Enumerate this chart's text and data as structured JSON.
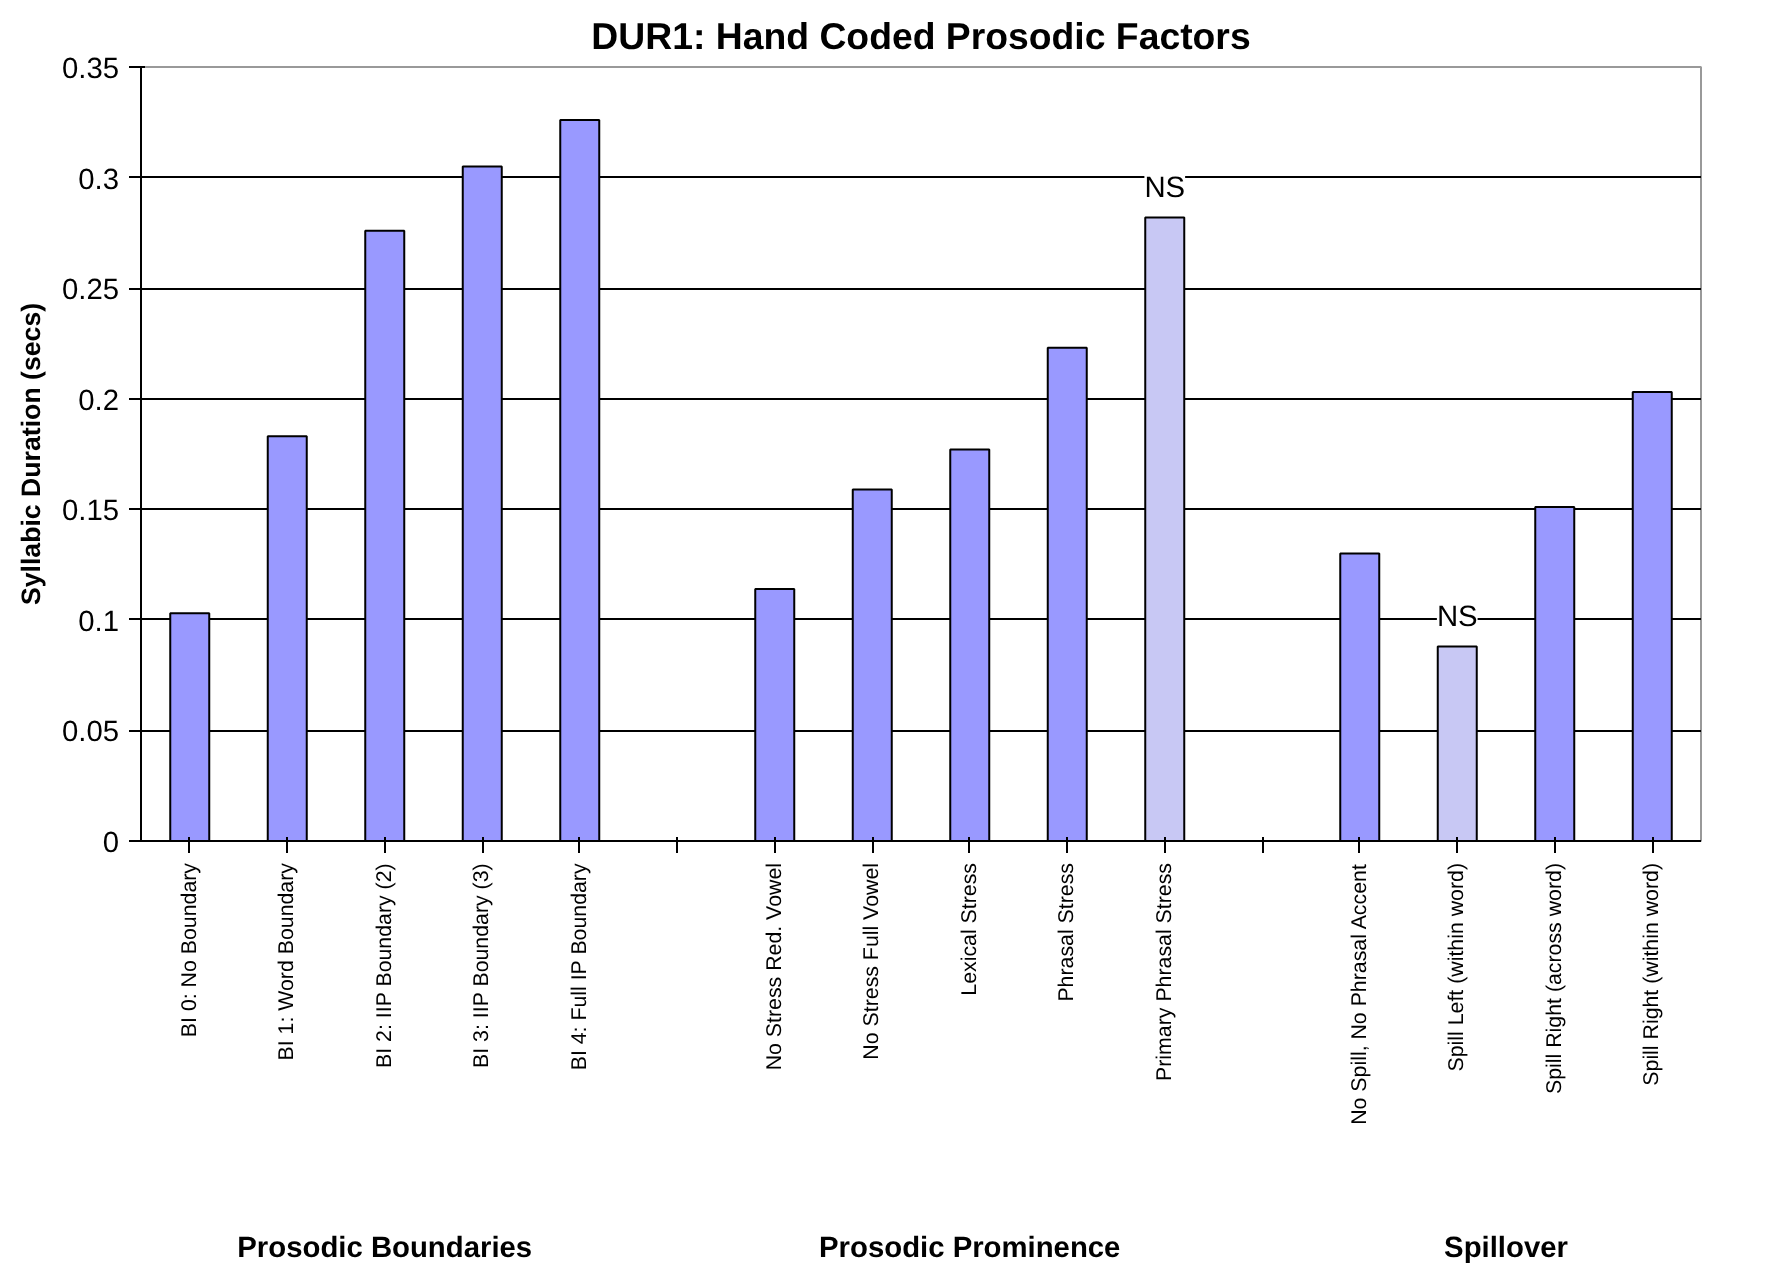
{
  "chart_data": {
    "type": "bar",
    "title": "DUR1: Hand Coded Prosodic Factors",
    "ylabel": "Syllabic Duration (secs)",
    "categories": [
      "BI 0: No Boundary",
      "BI 1: Word Boundary",
      "BI 2: IIP Boundary (2)",
      "BI 3: IIP Boundary (3)",
      "BI 4: Full IP Boundary",
      null,
      "No Stress Red. Vowel",
      "No Stress Full Vowel",
      "Lexical Stress",
      "Phrasal Stress",
      "Primary Phrasal Stress",
      null,
      "No Spill, No Phrasal Accent",
      "Spill Left (within word)",
      "Spill Right (across word)",
      "Spill Right (within word)"
    ],
    "values": [
      0.103,
      0.183,
      0.276,
      0.305,
      0.326,
      null,
      0.114,
      0.159,
      0.177,
      0.223,
      0.282,
      null,
      0.13,
      0.088,
      0.151,
      0.203
    ],
    "colors": [
      "#9999ff",
      "#9999ff",
      "#9999ff",
      "#9999ff",
      "#9999ff",
      null,
      "#9999ff",
      "#9999ff",
      "#9999ff",
      "#9999ff",
      "#c8c8f4",
      null,
      "#9999ff",
      "#c8c8f4",
      "#9999ff",
      "#9999ff"
    ],
    "ylim": [
      0,
      0.35
    ],
    "yticks": [
      0,
      0.05,
      0.1,
      0.15,
      0.2,
      0.25,
      0.3,
      0.35
    ],
    "grid": "y",
    "legend": false,
    "annotations": [
      {
        "text": "NS",
        "x": "Primary Phrasal Stress",
        "y": 0.282
      },
      {
        "text": "NS",
        "x": "Spill Left (within word)",
        "y": 0.088
      },
      "Prosodic Boundaries",
      "Prosodic Prominence",
      "Spillover"
    ]
  }
}
